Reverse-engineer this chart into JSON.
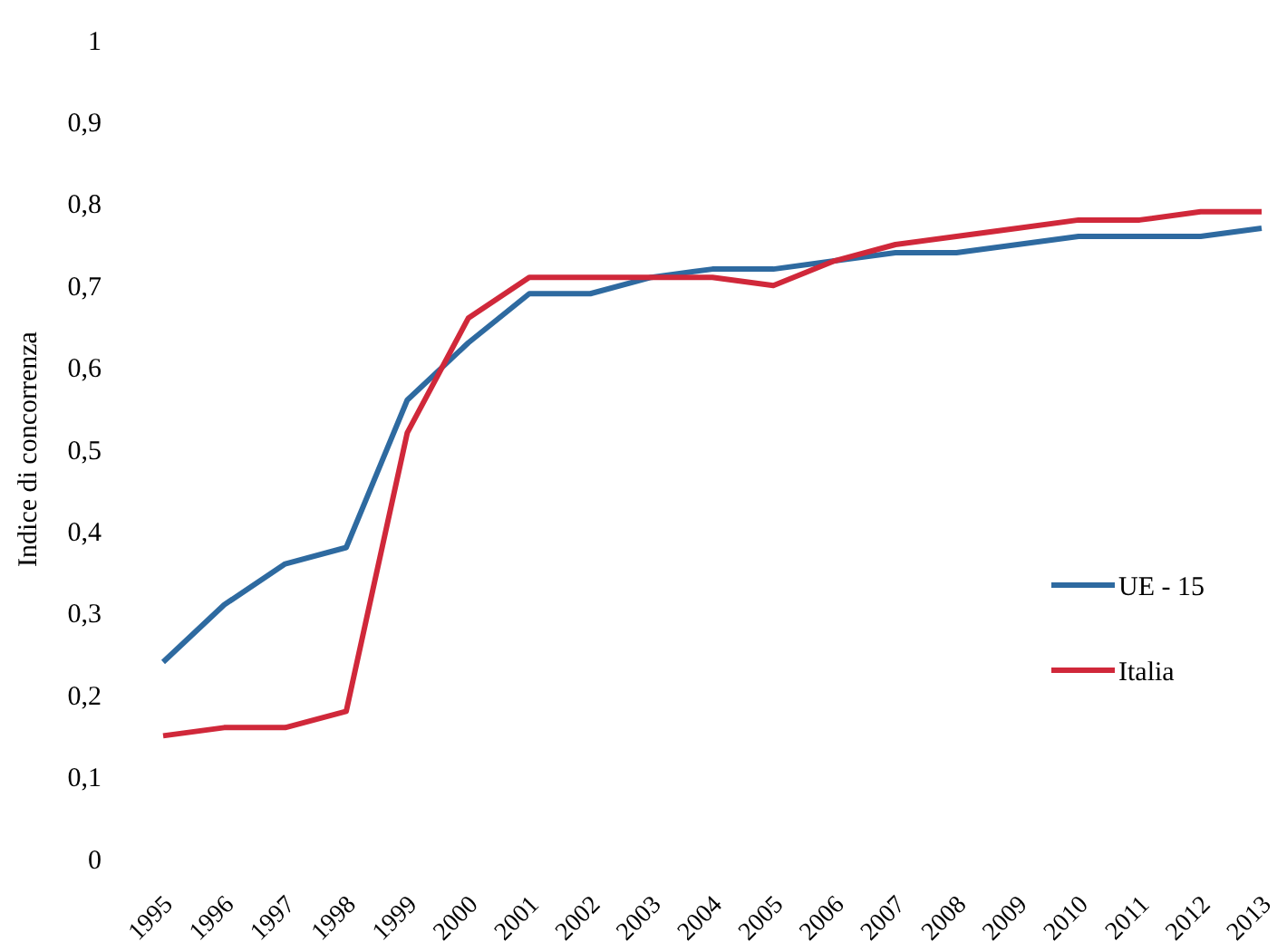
{
  "chart_data": {
    "type": "line",
    "ylabel": "Indice di concorrenza",
    "categories": [
      "1995",
      "1996",
      "1997",
      "1998",
      "1999",
      "2000",
      "2001",
      "2002",
      "2003",
      "2004",
      "2005",
      "2006",
      "2007",
      "2008",
      "2009",
      "2010",
      "2011",
      "2012",
      "2013"
    ],
    "series": [
      {
        "name": "UE - 15",
        "color": "#2e6aa0",
        "values": [
          0.24,
          0.31,
          0.36,
          0.38,
          0.56,
          0.63,
          0.69,
          0.69,
          0.71,
          0.72,
          0.72,
          0.73,
          0.74,
          0.74,
          0.75,
          0.76,
          0.76,
          0.76,
          0.77
        ]
      },
      {
        "name": "Italia",
        "color": "#d0283a",
        "values": [
          0.15,
          0.16,
          0.16,
          0.18,
          0.52,
          0.66,
          0.71,
          0.71,
          0.71,
          0.71,
          0.7,
          0.73,
          0.75,
          0.76,
          0.77,
          0.78,
          0.78,
          0.79,
          0.79
        ]
      }
    ],
    "ylim": [
      0,
      1
    ],
    "yticks": [
      0,
      {
        "value": 0.1,
        "label": "0,1"
      },
      {
        "value": 0.2,
        "label": "0,2"
      },
      {
        "value": 0.3,
        "label": "0,3"
      },
      {
        "value": 0.4,
        "label": "0,4"
      },
      {
        "value": 0.5,
        "label": "0,5"
      },
      {
        "value": 0.6,
        "label": "0,6"
      },
      {
        "value": 0.7,
        "label": "0,7"
      },
      {
        "value": 0.8,
        "label": "0,8"
      },
      {
        "value": 0.9,
        "label": "0,9"
      },
      1
    ],
    "legend": "right"
  }
}
